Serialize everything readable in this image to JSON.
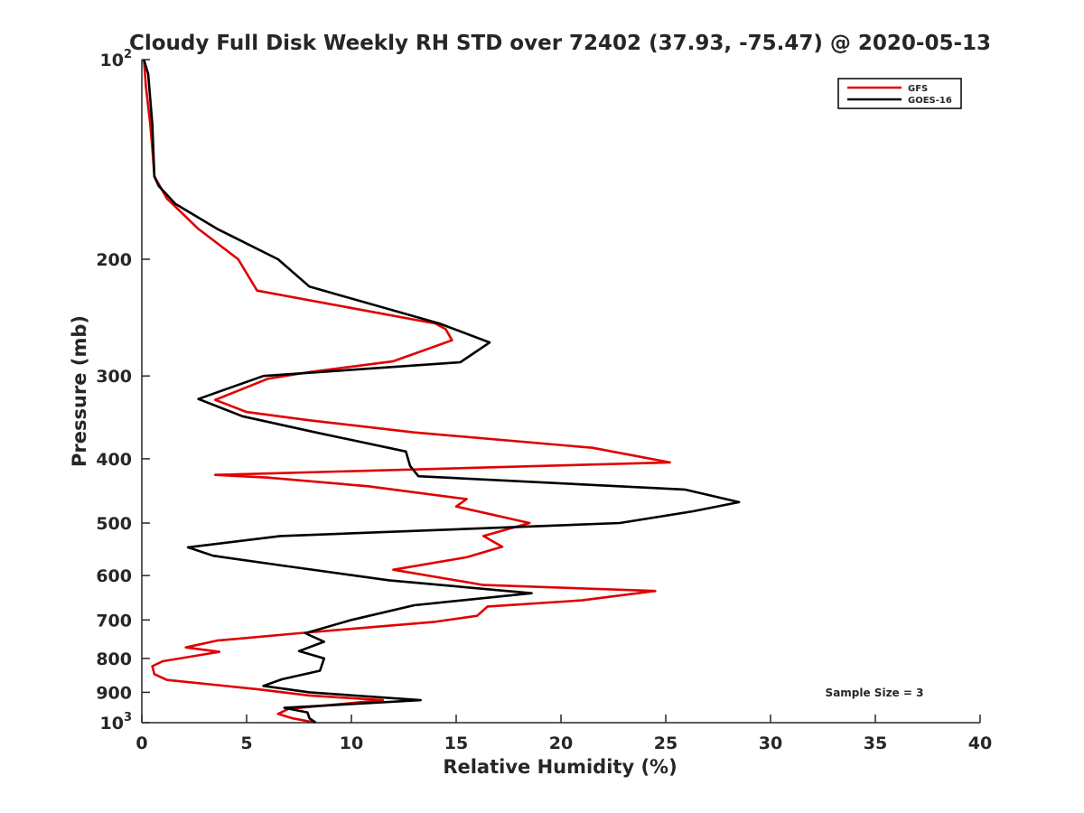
{
  "chart_data": {
    "type": "line",
    "title": "Cloudy Full Disk Weekly RH STD over 72402 (37.93, -75.47) @ 2020-05-13",
    "xlabel": "Relative Humidity (%)",
    "ylabel": "Pressure (mb)",
    "xlim": [
      0,
      40
    ],
    "ylim": [
      100,
      1000
    ],
    "y_scale": "log",
    "y_reversed": true,
    "x_ticks": [
      0,
      5,
      10,
      15,
      20,
      25,
      30,
      35,
      40
    ],
    "x_tick_labels": [
      "0",
      "5",
      "10",
      "15",
      "20",
      "25",
      "30",
      "35",
      "40"
    ],
    "y_ticks": [
      100,
      200,
      300,
      400,
      500,
      600,
      700,
      800,
      900,
      1000
    ],
    "y_tick_labels": [
      {
        "base": "10",
        "exp": "2"
      },
      {
        "base": "200",
        "exp": ""
      },
      {
        "base": "300",
        "exp": ""
      },
      {
        "base": "400",
        "exp": ""
      },
      {
        "base": "500",
        "exp": ""
      },
      {
        "base": "600",
        "exp": ""
      },
      {
        "base": "700",
        "exp": ""
      },
      {
        "base": "800",
        "exp": ""
      },
      {
        "base": "900",
        "exp": ""
      },
      {
        "base": "10",
        "exp": "3"
      }
    ],
    "annotation": "Sample Size = 3",
    "legend_position": "top-right",
    "grid": false,
    "series": [
      {
        "name": "GFS",
        "color": "#e00000",
        "points": [
          [
            0.1,
            100
          ],
          [
            0.2,
            110
          ],
          [
            0.4,
            125
          ],
          [
            0.5,
            136
          ],
          [
            0.6,
            150
          ],
          [
            1.2,
            162
          ],
          [
            2.7,
            180
          ],
          [
            4.6,
            200
          ],
          [
            5.5,
            223
          ],
          [
            14.0,
            250
          ],
          [
            14.5,
            255
          ],
          [
            14.8,
            265
          ],
          [
            12.0,
            285
          ],
          [
            8.0,
            296
          ],
          [
            6.0,
            303
          ],
          [
            3.5,
            326
          ],
          [
            5.0,
            340
          ],
          [
            8.0,
            350
          ],
          [
            13.0,
            365
          ],
          [
            21.5,
            385
          ],
          [
            25.2,
            405
          ],
          [
            3.5,
            423
          ],
          [
            6.0,
            427
          ],
          [
            10.8,
            440
          ],
          [
            15.5,
            460
          ],
          [
            15.0,
            472
          ],
          [
            18.5,
            500
          ],
          [
            16.3,
            523
          ],
          [
            17.2,
            543
          ],
          [
            15.5,
            563
          ],
          [
            12.0,
            588
          ],
          [
            16.3,
            620
          ],
          [
            24.5,
            633
          ],
          [
            21.0,
            654
          ],
          [
            16.5,
            668
          ],
          [
            16.0,
            690
          ],
          [
            13.9,
            705
          ],
          [
            7.5,
            733
          ],
          [
            3.6,
            752
          ],
          [
            2.1,
            770
          ],
          [
            3.7,
            782
          ],
          [
            1.0,
            808
          ],
          [
            0.5,
            822
          ],
          [
            0.6,
            845
          ],
          [
            1.2,
            862
          ],
          [
            5.5,
            890
          ],
          [
            8.0,
            910
          ],
          [
            11.5,
            925
          ],
          [
            7.0,
            953
          ],
          [
            6.5,
            970
          ],
          [
            7.2,
            985
          ],
          [
            8.3,
            1000
          ]
        ]
      },
      {
        "name": "GOES-16",
        "color": "#000000",
        "points": [
          [
            0.1,
            100
          ],
          [
            0.3,
            105
          ],
          [
            0.5,
            125
          ],
          [
            0.6,
            150
          ],
          [
            0.8,
            155
          ],
          [
            1.6,
            165
          ],
          [
            3.6,
            180
          ],
          [
            6.5,
            200
          ],
          [
            8.0,
            220
          ],
          [
            14.2,
            250
          ],
          [
            16.6,
            267
          ],
          [
            15.2,
            286
          ],
          [
            5.8,
            300
          ],
          [
            2.7,
            325
          ],
          [
            4.8,
            345
          ],
          [
            8.3,
            365
          ],
          [
            12.6,
            390
          ],
          [
            12.8,
            410
          ],
          [
            13.2,
            425
          ],
          [
            25.9,
            445
          ],
          [
            28.5,
            465
          ],
          [
            26.3,
            480
          ],
          [
            22.8,
            500
          ],
          [
            6.6,
            523
          ],
          [
            2.2,
            544
          ],
          [
            3.4,
            560
          ],
          [
            6.8,
            580
          ],
          [
            11.8,
            610
          ],
          [
            18.6,
            638
          ],
          [
            13.0,
            665
          ],
          [
            10.0,
            700
          ],
          [
            7.8,
            733
          ],
          [
            8.7,
            755
          ],
          [
            7.5,
            780
          ],
          [
            8.7,
            800
          ],
          [
            8.5,
            835
          ],
          [
            6.7,
            860
          ],
          [
            5.8,
            880
          ],
          [
            8.0,
            900
          ],
          [
            13.3,
            925
          ],
          [
            6.8,
            950
          ],
          [
            7.9,
            965
          ],
          [
            8.0,
            985
          ],
          [
            8.3,
            1000
          ]
        ]
      }
    ]
  }
}
